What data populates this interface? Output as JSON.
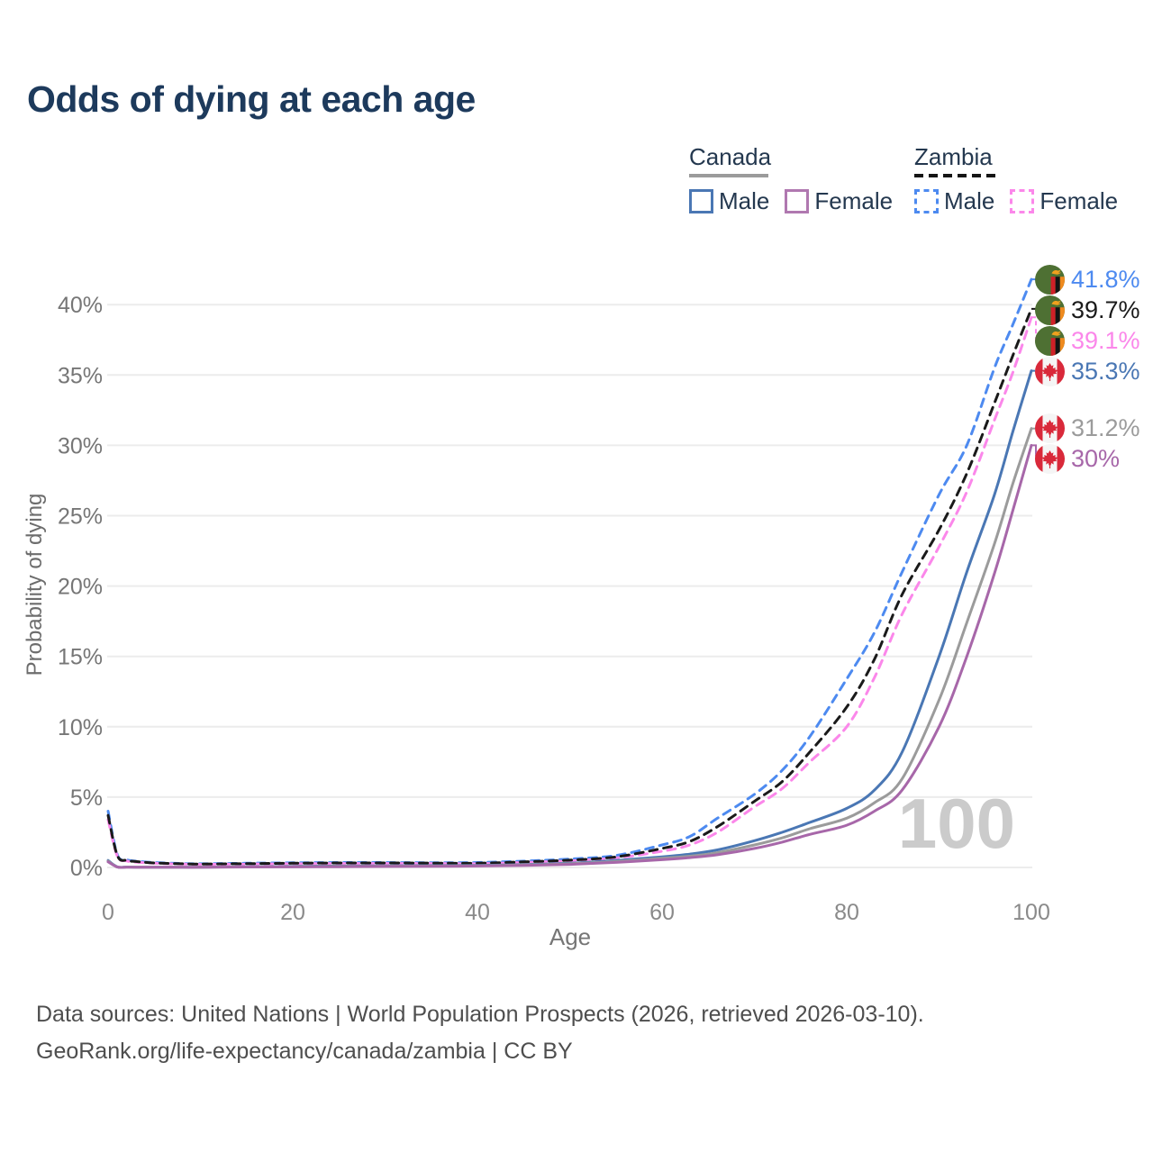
{
  "title": "Odds of dying at each age",
  "legend": {
    "groups": [
      {
        "label": "Canada",
        "line_style": "solid",
        "line_color": "#9b9b9b",
        "items": [
          {
            "label": "Male",
            "color": "#4a77b4",
            "style": "solid"
          },
          {
            "label": "Female",
            "color": "#b078b0",
            "style": "solid"
          }
        ]
      },
      {
        "label": "Zambia",
        "line_style": "dashed",
        "line_color": "#151515",
        "items": [
          {
            "label": "Male",
            "color": "#4d8af0",
            "style": "dashed"
          },
          {
            "label": "Female",
            "color": "#fb87ea",
            "style": "dashed"
          }
        ]
      }
    ]
  },
  "chart_data": {
    "type": "line",
    "title": "Odds of dying at each age",
    "xlabel": "Age",
    "ylabel": "Probability of dying",
    "xlim": [
      0,
      100
    ],
    "ylim_percent": [
      0,
      42.5
    ],
    "grid": "horizontal",
    "x_ticks": [
      "0",
      "20",
      "40",
      "60",
      "80",
      "100"
    ],
    "y_ticks": [
      "0%",
      "5%",
      "10%",
      "15%",
      "20%",
      "25%",
      "30%",
      "35%",
      "40%"
    ],
    "watermark": "100",
    "x": [
      0,
      1,
      2,
      3,
      5,
      8,
      10,
      15,
      20,
      25,
      30,
      35,
      40,
      45,
      50,
      55,
      60,
      63,
      66,
      70,
      73,
      76,
      80,
      83,
      86,
      90,
      93,
      96,
      98,
      100
    ],
    "series": [
      {
        "name": "Zambia Male",
        "country": "zambia",
        "sex": "male",
        "color": "#4d8af0",
        "dash": true,
        "end_label": "41.8%",
        "values": [
          4.0,
          0.9,
          0.55,
          0.45,
          0.35,
          0.28,
          0.26,
          0.3,
          0.33,
          0.35,
          0.35,
          0.34,
          0.35,
          0.45,
          0.6,
          0.85,
          1.6,
          2.2,
          3.5,
          5.2,
          6.9,
          9.3,
          13.4,
          16.7,
          21.0,
          26.5,
          30.0,
          35.5,
          38.6,
          41.8
        ]
      },
      {
        "name": "Zambia Both sexes",
        "country": "zambia",
        "sex": "both",
        "color": "#1a1a1a",
        "dash": true,
        "end_label": "39.7%",
        "values": [
          3.7,
          0.85,
          0.5,
          0.42,
          0.32,
          0.26,
          0.24,
          0.27,
          0.3,
          0.32,
          0.32,
          0.31,
          0.3,
          0.4,
          0.52,
          0.75,
          1.35,
          1.85,
          2.9,
          4.7,
          6.1,
          8.2,
          11.4,
          14.8,
          19.4,
          24.0,
          28.0,
          33.0,
          36.4,
          39.7
        ]
      },
      {
        "name": "Zambia Female",
        "country": "zambia",
        "sex": "female",
        "color": "#fb87ea",
        "dash": true,
        "end_label": "39.1%",
        "values": [
          3.4,
          0.8,
          0.47,
          0.38,
          0.3,
          0.24,
          0.22,
          0.24,
          0.26,
          0.28,
          0.28,
          0.28,
          0.27,
          0.36,
          0.47,
          0.68,
          1.15,
          1.6,
          2.5,
          4.3,
          5.6,
          7.5,
          10.0,
          13.5,
          18.0,
          22.8,
          26.7,
          31.8,
          35.2,
          39.1
        ]
      },
      {
        "name": "Canada Male",
        "country": "canada",
        "sex": "male",
        "color": "#4a77b4",
        "dash": false,
        "end_label": "35.3%",
        "values": [
          0.5,
          0.04,
          0.03,
          0.02,
          0.02,
          0.02,
          0.02,
          0.05,
          0.08,
          0.1,
          0.11,
          0.13,
          0.15,
          0.2,
          0.3,
          0.5,
          0.75,
          0.95,
          1.25,
          1.9,
          2.5,
          3.2,
          4.2,
          5.5,
          8.2,
          15.0,
          21.0,
          26.5,
          31.0,
          35.3
        ]
      },
      {
        "name": "Canada Both sexes",
        "country": "canada",
        "sex": "both",
        "color": "#9b9b9b",
        "dash": false,
        "end_label": "31.2%",
        "values": [
          0.45,
          0.035,
          0.025,
          0.02,
          0.015,
          0.015,
          0.015,
          0.04,
          0.06,
          0.08,
          0.09,
          0.1,
          0.12,
          0.17,
          0.26,
          0.42,
          0.65,
          0.8,
          1.05,
          1.6,
          2.1,
          2.75,
          3.5,
          4.6,
          6.3,
          11.9,
          17.4,
          23.0,
          27.3,
          31.2
        ]
      },
      {
        "name": "Canada Female",
        "country": "canada",
        "sex": "female",
        "color": "#a767a9",
        "dash": false,
        "end_label": "30%",
        "values": [
          0.4,
          0.03,
          0.02,
          0.015,
          0.012,
          0.012,
          0.012,
          0.03,
          0.04,
          0.05,
          0.07,
          0.08,
          0.1,
          0.14,
          0.22,
          0.36,
          0.55,
          0.7,
          0.9,
          1.35,
          1.8,
          2.35,
          3.0,
          4.0,
          5.5,
          10.0,
          15.0,
          20.9,
          25.4,
          30.0
        ]
      }
    ]
  },
  "footer": {
    "line1": "Data sources: United Nations | World Population Prospects (2026, retrieved 2026-03-10).",
    "line2": "GeoRank.org/life-expectancy/canada/zambia | CC BY"
  }
}
